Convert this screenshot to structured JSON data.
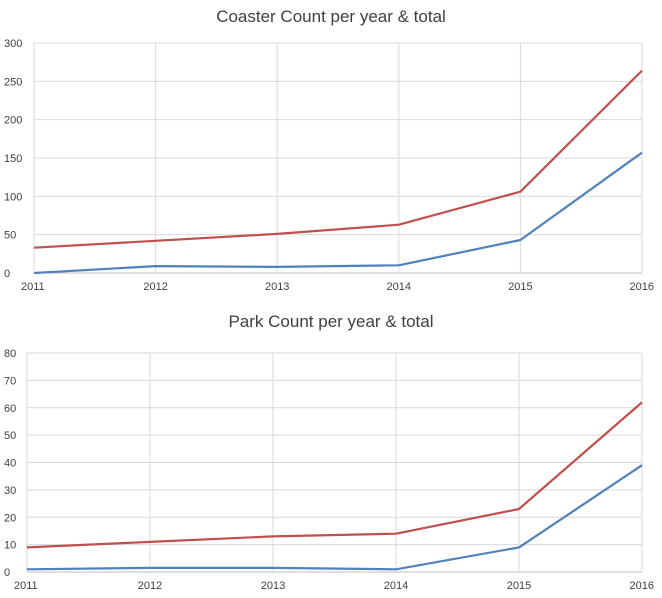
{
  "chart_data": [
    {
      "type": "line",
      "title": "Coaster Count per year & total",
      "categories": [
        "2011",
        "2012",
        "2013",
        "2014",
        "2015",
        "2016"
      ],
      "ylim": [
        0,
        300
      ],
      "yticks": [
        0,
        50,
        100,
        150,
        200,
        250,
        300
      ],
      "grid": true,
      "series": [
        {
          "values": [
            0,
            9,
            8,
            10,
            43,
            157
          ],
          "color": "#4f81bd"
        },
        {
          "values": [
            33,
            42,
            51,
            63,
            106,
            264
          ],
          "color": "#c0504d"
        }
      ]
    },
    {
      "type": "line",
      "title": "Park Count per year & total",
      "categories": [
        "2011",
        "2012",
        "2013",
        "2014",
        "2015",
        "2016"
      ],
      "ylim": [
        0,
        80
      ],
      "yticks": [
        0,
        10,
        20,
        30,
        40,
        50,
        60,
        70,
        80
      ],
      "grid": true,
      "series": [
        {
          "values": [
            1,
            1.5,
            1.5,
            1,
            9,
            39
          ],
          "color": "#4f81bd"
        },
        {
          "values": [
            9,
            11,
            13,
            14,
            23,
            62
          ],
          "color": "#c0504d"
        }
      ]
    }
  ]
}
